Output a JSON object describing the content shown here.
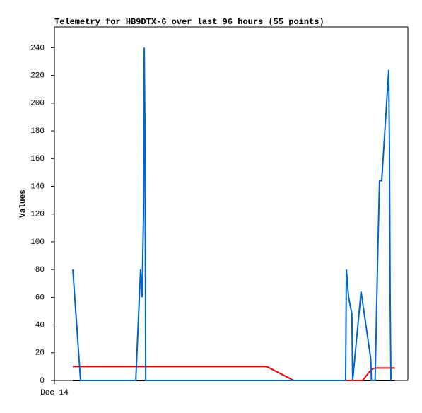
{
  "chart_data": {
    "type": "line",
    "title": "Telemetry for HB9DTX-6 over last 96 hours (55 points)",
    "y_label": "Values",
    "xlim": [
      0,
      96
    ],
    "xticks": [
      {
        "value": 0,
        "label": "Dec 14"
      }
    ],
    "ylim": [
      0,
      255
    ],
    "yticks": [
      0,
      20,
      40,
      60,
      80,
      100,
      120,
      140,
      160,
      180,
      200,
      220,
      240
    ],
    "series": [
      {
        "color": "#000000",
        "x": [
          5.0,
          92.5
        ],
        "values": [
          0,
          0
        ]
      },
      {
        "color": "#ee0000",
        "x": [
          5.0,
          57.7,
          65.0,
          83.7,
          86.1,
          87.1,
          92.5
        ],
        "values": [
          10,
          10,
          0,
          0,
          8,
          9,
          9
        ]
      },
      {
        "color": "#0066cc",
        "x": [
          5.0,
          7.1,
          22.1,
          23.4,
          23.8,
          24.2,
          24.4,
          24.6,
          24.8,
          79.1,
          79.3,
          79.9,
          80.8,
          81.0,
          83.3,
          85.9,
          86.1,
          87.1,
          87.9,
          88.3,
          88.9,
          90.8,
          91.0,
          91.2,
          91.4
        ],
        "values": [
          80,
          0,
          0,
          80,
          60,
          120,
          240,
          180,
          0,
          0,
          80,
          60,
          48,
          0,
          64,
          16,
          0,
          0,
          100,
          144,
          144,
          224,
          168,
          56,
          0
        ]
      }
    ]
  }
}
